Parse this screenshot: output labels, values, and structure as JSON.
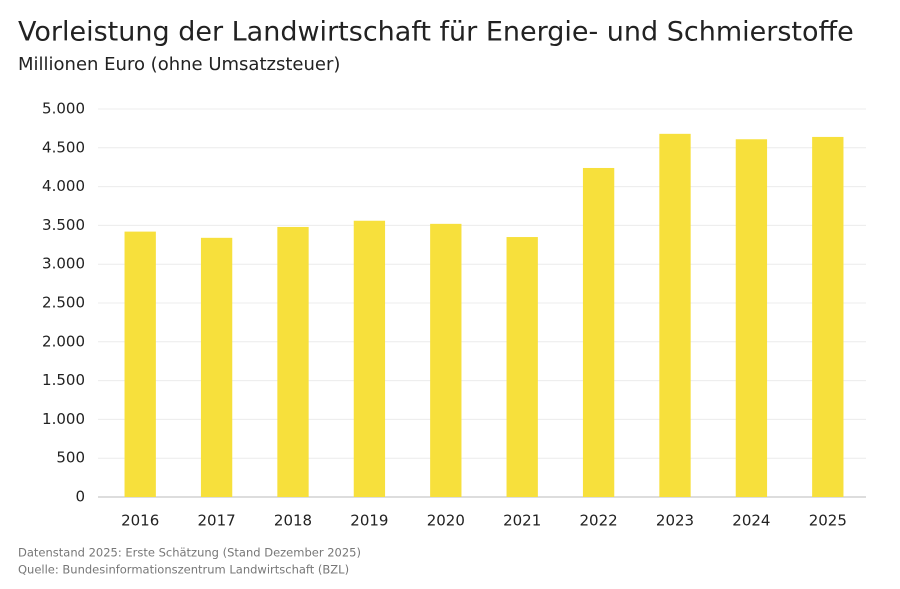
{
  "chart_data": {
    "type": "bar",
    "title": "Vorleistung der Landwirtschaft für Energie- und Schmierstoffe",
    "subtitle": "Millionen Euro (ohne Umsatzsteuer)",
    "categories": [
      "2016",
      "2017",
      "2018",
      "2019",
      "2020",
      "2021",
      "2022",
      "2023",
      "2024",
      "2025"
    ],
    "values": [
      3420,
      3340,
      3480,
      3560,
      3520,
      3350,
      4240,
      4680,
      4610,
      4640
    ],
    "color": "#f7e03c",
    "ylim": [
      0,
      5000
    ],
    "yticks": [
      0,
      500,
      {
        "value": 1000,
        "label": "1.000"
      },
      {
        "value": 1500,
        "label": "1.500"
      },
      {
        "value": 2000,
        "label": "2.000"
      },
      {
        "value": 2500,
        "label": "2.500"
      },
      {
        "value": 3000,
        "label": "3.000"
      },
      {
        "value": 3500,
        "label": "3.500"
      },
      {
        "value": 4000,
        "label": "4.000"
      },
      {
        "value": 4500,
        "label": "4.500"
      },
      {
        "value": 5000,
        "label": "5.000"
      }
    ],
    "grid": true,
    "notes": [
      "Datenstand 2025: Erste Schätzung (Stand Dezember 2025)",
      "Quelle: Bundesinformationszentrum Landwirtschaft (BZL)"
    ]
  }
}
